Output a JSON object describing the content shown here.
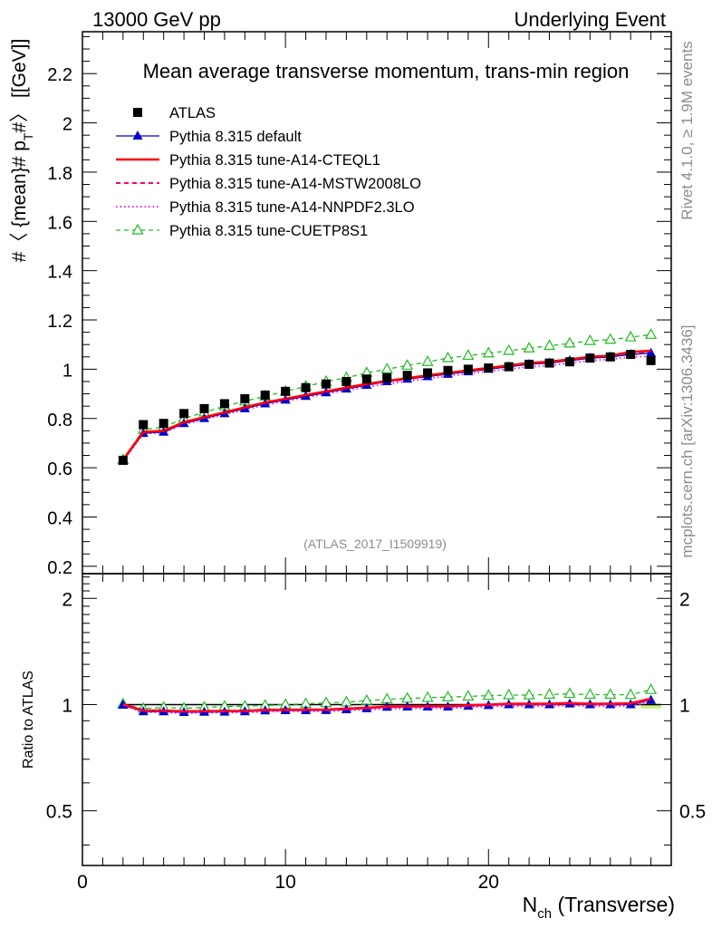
{
  "header": {
    "energy_label": "13000 GeV pp",
    "process_label": "Underlying Event"
  },
  "side": {
    "rivet_label": "Rivet 4.1.0, ≥ 1.9M events",
    "source_label": "mcplots.cern.ch [arXiv:1306.3436]"
  },
  "chart_data": [
    {
      "type": "line",
      "title": "Mean average transverse momentum, trans-min region",
      "ylabel": "#〈{mean}# p_{T} #〉 [[GeV]]",
      "ylabel_display": "#〈 {mean}# p",
      "ylabel_sub": "T",
      "ylabel_tail": "#〉 [[GeV]]",
      "watermark": "(ATLAS_2017_I1509919)",
      "xlim": [
        0,
        29
      ],
      "ylim": [
        0.17,
        2.37
      ],
      "yticks": [
        0.2,
        0.4,
        0.6,
        0.8,
        1,
        1.2,
        1.4,
        1.6,
        1.8,
        2,
        2.2
      ],
      "ytick_labels": [
        "0.2",
        "0.4",
        "0.6",
        "0.8",
        "1",
        "1.2",
        "1.4",
        "1.6",
        "1.8",
        "2",
        "2.2"
      ],
      "x": [
        2,
        3,
        4,
        5,
        6,
        7,
        8,
        9,
        10,
        11,
        12,
        13,
        14,
        15,
        16,
        17,
        18,
        19,
        20,
        21,
        22,
        23,
        24,
        25,
        26,
        27,
        28
      ],
      "legend": [
        {
          "label": "ATLAS"
        },
        {
          "label": "Pythia 8.315 default"
        },
        {
          "label": "Pythia 8.315 tune-A14-CTEQL1"
        },
        {
          "label": "Pythia 8.315 tune-A14-MSTW2008LO"
        },
        {
          "label": "Pythia 8.315 tune-A14-NNPDF2.3LO"
        },
        {
          "label": "Pythia 8.315 tune-CUETP8S1"
        }
      ],
      "series": [
        {
          "name": "ATLAS",
          "color": "#000000",
          "style": "marker-square",
          "values": [
            0.63,
            0.775,
            0.78,
            0.82,
            0.84,
            0.86,
            0.88,
            0.895,
            0.91,
            0.925,
            0.94,
            0.95,
            0.96,
            0.965,
            0.975,
            0.985,
            0.995,
            1.0,
            1.005,
            1.01,
            1.02,
            1.025,
            1.03,
            1.045,
            1.05,
            1.06,
            1.035
          ]
        },
        {
          "name": "Pythia 8.315 default",
          "color": "#0000cc",
          "style": "solid-triangle",
          "values": [
            0.628,
            0.74,
            0.745,
            0.78,
            0.8,
            0.82,
            0.84,
            0.86,
            0.875,
            0.89,
            0.905,
            0.92,
            0.935,
            0.95,
            0.96,
            0.97,
            0.98,
            0.99,
            1.0,
            1.01,
            1.02,
            1.025,
            1.035,
            1.045,
            1.05,
            1.06,
            1.065
          ]
        },
        {
          "name": "Pythia 8.315 tune-A14-CTEQL1",
          "color": "#ff0000",
          "style": "solid-thick",
          "values": [
            0.632,
            0.745,
            0.75,
            0.785,
            0.805,
            0.825,
            0.845,
            0.865,
            0.88,
            0.895,
            0.91,
            0.925,
            0.94,
            0.952,
            0.963,
            0.975,
            0.985,
            0.995,
            1.005,
            1.015,
            1.025,
            1.03,
            1.04,
            1.05,
            1.055,
            1.07,
            1.075
          ]
        },
        {
          "name": "Pythia 8.315 tune-A14-MSTW2008LO",
          "color": "#ff0066",
          "style": "dashed",
          "values": [
            0.63,
            0.743,
            0.748,
            0.783,
            0.803,
            0.823,
            0.843,
            0.862,
            0.877,
            0.892,
            0.907,
            0.922,
            0.937,
            0.949,
            0.96,
            0.972,
            0.982,
            0.992,
            1.002,
            1.012,
            1.022,
            1.027,
            1.037,
            1.047,
            1.052,
            1.065,
            1.068
          ]
        },
        {
          "name": "Pythia 8.315 tune-A14-NNPDF2.3LO",
          "color": "#ee22ee",
          "style": "dotted",
          "values": [
            0.627,
            0.738,
            0.742,
            0.776,
            0.796,
            0.816,
            0.835,
            0.855,
            0.87,
            0.885,
            0.9,
            0.914,
            0.928,
            0.94,
            0.951,
            0.962,
            0.972,
            0.982,
            0.992,
            1.0,
            1.01,
            1.015,
            1.025,
            1.035,
            1.04,
            1.05,
            1.052
          ]
        },
        {
          "name": "Pythia 8.315 tune-CUETP8S1",
          "color": "#22bb22",
          "style": "dashed-open-triangle",
          "values": [
            0.632,
            0.755,
            0.765,
            0.8,
            0.825,
            0.85,
            0.87,
            0.89,
            0.91,
            0.93,
            0.95,
            0.965,
            0.985,
            1.0,
            1.015,
            1.03,
            1.045,
            1.055,
            1.065,
            1.075,
            1.085,
            1.095,
            1.105,
            1.115,
            1.12,
            1.13,
            1.14
          ]
        }
      ]
    },
    {
      "type": "line",
      "ylabel": "Ratio to ATLAS",
      "xlabel_main": "N",
      "xlabel_sub": "ch",
      "xlabel_tail": " (Transverse)",
      "xlim": [
        0,
        29
      ],
      "ylim": [
        0.35,
        2.35
      ],
      "xticks": [
        0,
        10,
        20
      ],
      "xtick_labels": [
        "0",
        "10",
        "20"
      ],
      "yticks": [
        0.5,
        1,
        2
      ],
      "ytick_labels": [
        "0.5",
        "1",
        "2"
      ],
      "band_x": [
        27.5,
        28.5
      ],
      "band_y": [
        0.975,
        1.005
      ],
      "series": [
        {
          "name": "Pythia 8.315 default",
          "color": "#0000cc",
          "style": "solid-triangle",
          "values": [
            0.997,
            0.955,
            0.955,
            0.951,
            0.952,
            0.953,
            0.955,
            0.961,
            0.962,
            0.962,
            0.963,
            0.968,
            0.974,
            0.984,
            0.985,
            0.985,
            0.985,
            0.99,
            0.995,
            1.0,
            1.0,
            1.0,
            1.005,
            1.0,
            1.0,
            1.0,
            1.029
          ]
        },
        {
          "name": "Pythia 8.315 tune-A14-CTEQL1",
          "color": "#ff0000",
          "style": "solid-thick",
          "values": [
            1.003,
            0.961,
            0.962,
            0.957,
            0.958,
            0.959,
            0.96,
            0.966,
            0.967,
            0.968,
            0.968,
            0.974,
            0.979,
            0.987,
            0.988,
            0.99,
            0.99,
            0.995,
            1.0,
            1.005,
            1.005,
            1.005,
            1.01,
            1.005,
            1.005,
            1.009,
            1.039
          ]
        },
        {
          "name": "Pythia 8.315 tune-A14-MSTW2008LO",
          "color": "#ff0066",
          "style": "dashed",
          "values": [
            1.0,
            0.959,
            0.959,
            0.955,
            0.956,
            0.957,
            0.958,
            0.963,
            0.964,
            0.964,
            0.965,
            0.971,
            0.976,
            0.983,
            0.985,
            0.987,
            0.987,
            0.992,
            0.997,
            1.002,
            1.002,
            1.002,
            1.007,
            1.002,
            1.002,
            1.005,
            1.032
          ]
        },
        {
          "name": "Pythia 8.315 tune-A14-NNPDF2.3LO",
          "color": "#ee22ee",
          "style": "dotted",
          "values": [
            0.995,
            0.952,
            0.951,
            0.946,
            0.948,
            0.949,
            0.949,
            0.955,
            0.956,
            0.957,
            0.957,
            0.962,
            0.967,
            0.974,
            0.975,
            0.977,
            0.977,
            0.982,
            0.987,
            0.99,
            0.99,
            0.99,
            0.995,
            0.99,
            0.99,
            0.991,
            1.016
          ]
        },
        {
          "name": "Pythia 8.315 tune-CUETP8S1",
          "color": "#22bb22",
          "style": "dashed-open-triangle",
          "values": [
            1.003,
            0.974,
            0.981,
            0.976,
            0.982,
            0.988,
            0.989,
            0.994,
            1.0,
            1.005,
            1.011,
            1.016,
            1.026,
            1.036,
            1.041,
            1.046,
            1.05,
            1.055,
            1.06,
            1.064,
            1.064,
            1.068,
            1.073,
            1.067,
            1.067,
            1.066,
            1.101
          ]
        }
      ]
    }
  ]
}
